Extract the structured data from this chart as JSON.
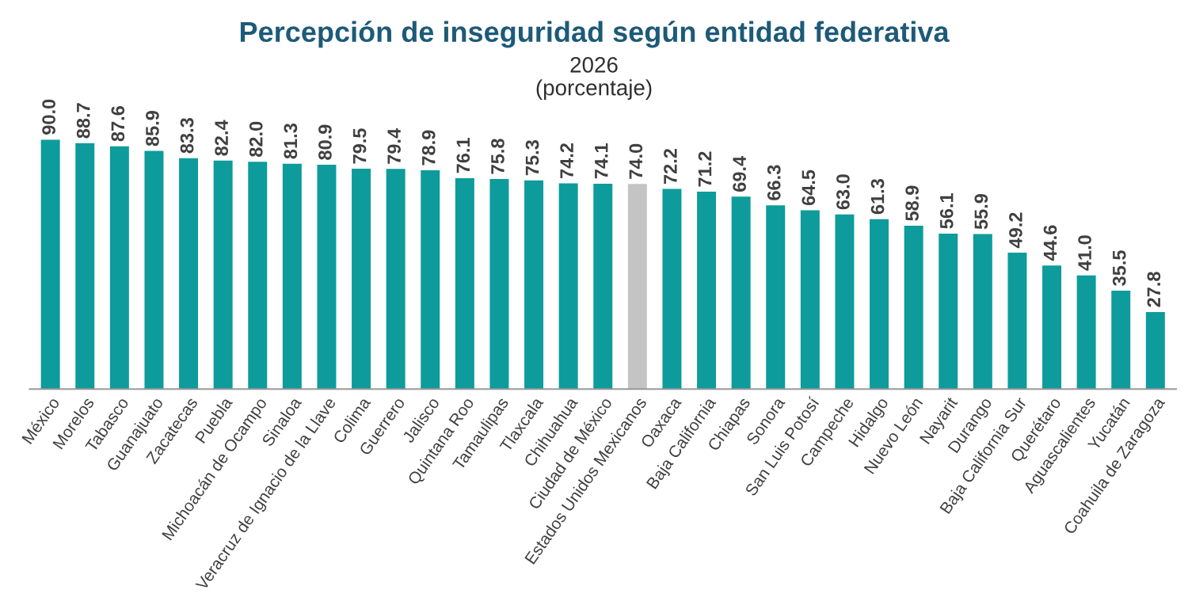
{
  "chart_data": {
    "type": "bar",
    "title": "Percepción de inseguridad según entidad federativa",
    "subtitle": "2026\n(porcentaje)",
    "categories": [
      "México",
      "Morelos",
      "Tabasco",
      "Guanajuato",
      "Zacatecas",
      "Puebla",
      "Michoacán de Ocampo",
      "Sinaloa",
      "Veracruz de Ignacio de la Llave",
      "Colima",
      "Guerrero",
      "Jalisco",
      "Quintana Roo",
      "Tamaulipas",
      "Tlaxcala",
      "Chihuahua",
      "Ciudad de México",
      "Estados Unidos Mexicanos",
      "Oaxaca",
      "Baja California",
      "Chiapas",
      "Sonora",
      "San Luis Potosí",
      "Campeche",
      "Hidalgo",
      "Nuevo León",
      "Nayarit",
      "Durango",
      "Baja California Sur",
      "Querétaro",
      "Aguascalientes",
      "Yucatán",
      "Coahuila de Zaragoza"
    ],
    "values": [
      90.0,
      88.7,
      87.6,
      85.9,
      83.3,
      82.4,
      82.0,
      81.3,
      80.9,
      79.5,
      79.4,
      78.9,
      76.1,
      75.8,
      75.3,
      74.2,
      74.1,
      74.0,
      72.2,
      71.2,
      69.4,
      66.3,
      64.5,
      63.0,
      61.3,
      58.9,
      56.1,
      55.9,
      49.2,
      44.6,
      41.0,
      35.5,
      27.8
    ],
    "colors": [
      "#0e9b9b",
      "#0e9b9b",
      "#0e9b9b",
      "#0e9b9b",
      "#0e9b9b",
      "#0e9b9b",
      "#0e9b9b",
      "#0e9b9b",
      "#0e9b9b",
      "#0e9b9b",
      "#0e9b9b",
      "#0e9b9b",
      "#0e9b9b",
      "#0e9b9b",
      "#0e9b9b",
      "#0e9b9b",
      "#0e9b9b",
      "#c4c4c4",
      "#0e9b9b",
      "#0e9b9b",
      "#0e9b9b",
      "#0e9b9b",
      "#0e9b9b",
      "#0e9b9b",
      "#0e9b9b",
      "#0e9b9b",
      "#0e9b9b",
      "#0e9b9b",
      "#0e9b9b",
      "#0e9b9b",
      "#0e9b9b",
      "#0e9b9b",
      "#0e9b9b"
    ],
    "value_labels": [
      "90.0",
      "88.7",
      "87.6",
      "85.9",
      "83.3",
      "82.4",
      "82.0",
      "81.3",
      "80.9",
      "79.5",
      "79.4",
      "78.9",
      "76.1",
      "75.8",
      "75.3",
      "74.2",
      "74.1",
      "74.0",
      "72.2",
      "71.2",
      "69.4",
      "66.3",
      "64.5",
      "63.0",
      "61.3",
      "58.9",
      "56.1",
      "55.9",
      "49.2",
      "44.6",
      "41.0",
      "35.5",
      "27.8"
    ]
  }
}
